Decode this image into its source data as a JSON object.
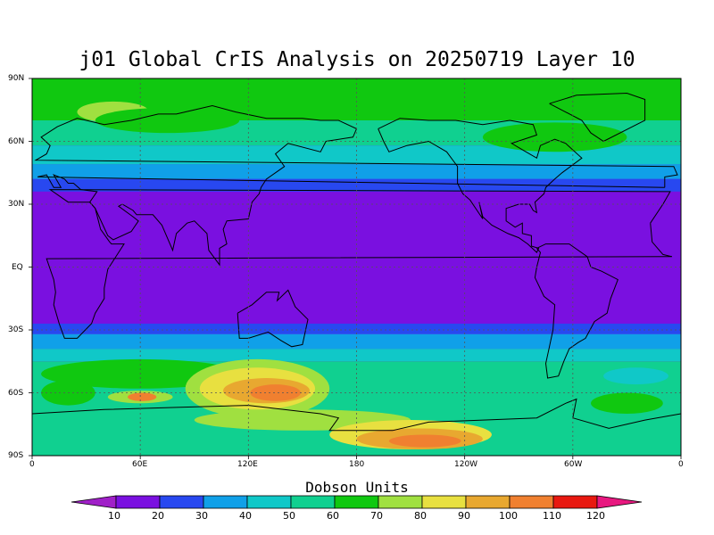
{
  "title": "j01 Global CrIS Analysis on 20250719 Layer 10",
  "map": {
    "lat_labels": [
      "90N",
      "60N",
      "30N",
      "EQ",
      "30S",
      "60S",
      "90S"
    ],
    "lon_labels": [
      "0",
      "60E",
      "120E",
      "180",
      "120W",
      "60W",
      "0"
    ],
    "grid": true,
    "background_level": 20,
    "ozone_bands": [
      {
        "lat_from": 90,
        "lat_to": 70,
        "level": 70
      },
      {
        "lat_from": 70,
        "lat_to": 58,
        "level": 60
      },
      {
        "lat_from": 58,
        "lat_to": 49,
        "level": 50
      },
      {
        "lat_from": 49,
        "lat_to": 42,
        "level": 40
      },
      {
        "lat_from": 42,
        "lat_to": 36,
        "level": 30
      },
      {
        "lat_from": 36,
        "lat_to": 28,
        "level": 20
      },
      {
        "lat_from": -27,
        "lat_to": -32,
        "level": 30
      },
      {
        "lat_from": -32,
        "lat_to": -39,
        "level": 40
      },
      {
        "lat_from": -39,
        "lat_to": -45,
        "level": 50
      },
      {
        "lat_from": -45,
        "lat_to": -90,
        "level": 60
      }
    ],
    "ozone_blobs": [
      {
        "lon": 45,
        "lat": 74,
        "rlon": 20,
        "rlat": 5,
        "level": 80
      },
      {
        "lon": 75,
        "lat": 70,
        "rlon": 40,
        "rlat": 6,
        "level": 70
      },
      {
        "lon": 60,
        "lat": -51,
        "rlon": 55,
        "rlat": 7,
        "level": 70
      },
      {
        "lon": 125,
        "lat": -58,
        "rlon": 40,
        "rlat": 14,
        "level": 80
      },
      {
        "lon": 125,
        "lat": -58,
        "rlon": 32,
        "rlat": 10,
        "level": 90
      },
      {
        "lon": 130,
        "lat": -59,
        "rlon": 24,
        "rlat": 6,
        "level": 100
      },
      {
        "lon": 135,
        "lat": -60,
        "rlon": 14,
        "rlat": 4,
        "level": 110
      },
      {
        "lon": 60,
        "lat": -62,
        "rlon": 18,
        "rlat": 3,
        "level": 80
      },
      {
        "lon": 61,
        "lat": -62,
        "rlon": 8,
        "rlat": 2,
        "level": 110
      },
      {
        "lon": 150,
        "lat": -73,
        "rlon": 60,
        "rlat": 5,
        "level": 80
      },
      {
        "lon": 210,
        "lat": -80,
        "rlon": 45,
        "rlat": 7,
        "level": 90
      },
      {
        "lon": 215,
        "lat": -82,
        "rlon": 35,
        "rlat": 5,
        "level": 100
      },
      {
        "lon": 218,
        "lat": -83,
        "rlon": 20,
        "rlat": 3,
        "level": 110
      },
      {
        "lon": 330,
        "lat": -65,
        "rlon": 20,
        "rlat": 5,
        "level": 70
      },
      {
        "lon": 20,
        "lat": -60,
        "rlon": 15,
        "rlat": 6,
        "level": 70
      },
      {
        "lon": 335,
        "lat": -52,
        "rlon": 18,
        "rlat": 4,
        "level": 50
      },
      {
        "lon": 290,
        "lat": 62,
        "rlon": 40,
        "rlat": 7,
        "level": 70
      }
    ]
  },
  "colorbar": {
    "title": "Dobson Units",
    "labels": [
      "10",
      "20",
      "30",
      "40",
      "50",
      "60",
      "70",
      "80",
      "90",
      "100",
      "110",
      "120"
    ],
    "colors": [
      "#a020c8",
      "#7a10e0",
      "#2848f0",
      "#10a0e8",
      "#10c8c8",
      "#10d090",
      "#10c810",
      "#a0e040",
      "#e8e040",
      "#e8a830",
      "#f08030",
      "#e81810",
      "#e81880"
    ]
  },
  "colors": {
    "level_colors": {
      "10": "#a020c8",
      "20": "#7a10e0",
      "30": "#2848f0",
      "40": "#10a0e8",
      "50": "#10c8c8",
      "60": "#10d090",
      "70": "#10c810",
      "80": "#a0e040",
      "90": "#e8e040",
      "100": "#e8a830",
      "110": "#f08030",
      "120": "#e81810"
    }
  }
}
